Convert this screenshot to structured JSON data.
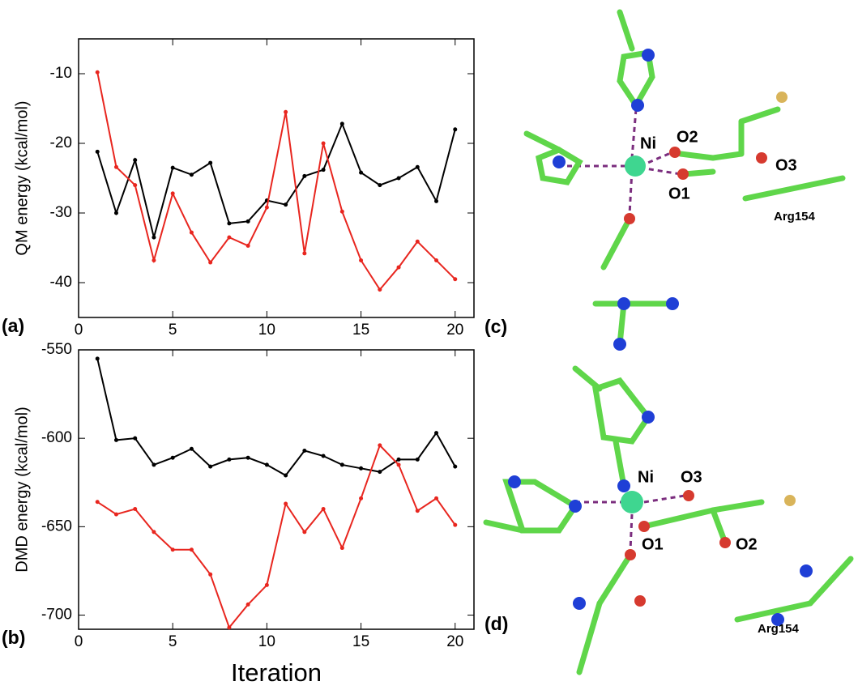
{
  "chart_data": [
    {
      "type": "line",
      "panel": "(a)",
      "y_label": "QM energy (kcal/mol)",
      "x": [
        1,
        2,
        3,
        4,
        5,
        6,
        7,
        8,
        9,
        10,
        11,
        12,
        13,
        14,
        15,
        16,
        17,
        18,
        19,
        20
      ],
      "series": [
        {
          "color": "#000000",
          "values": [
            -21.2,
            -30,
            -22.4,
            -33.5,
            -23.5,
            -24.5,
            -22.8,
            -31.5,
            -31.2,
            -28.2,
            -28.8,
            -24.7,
            -23.8,
            -17.2,
            -24.2,
            -26,
            -25,
            -23.4,
            -28.3,
            -18
          ]
        },
        {
          "color": "#e8261f",
          "values": [
            -9.8,
            -23.4,
            -26,
            -36.8,
            -27.2,
            -32.8,
            -37.1,
            -33.5,
            -34.7,
            -29.2,
            -15.5,
            -35.8,
            -20,
            -29.8,
            -36.8,
            -41,
            -37.8,
            -34.1,
            -36.8,
            -39.5
          ]
        }
      ],
      "xlim": [
        0,
        21
      ],
      "xticks": [
        0,
        5,
        10,
        15,
        20
      ],
      "ylim": [
        -45,
        -5
      ],
      "yticks": [
        -40,
        -30,
        -20,
        -10
      ]
    },
    {
      "type": "line",
      "panel": "(b)",
      "y_label": "DMD energy (kcal/mol)",
      "x_label": "Iteration",
      "x": [
        1,
        2,
        3,
        4,
        5,
        6,
        7,
        8,
        9,
        10,
        11,
        12,
        13,
        14,
        15,
        16,
        17,
        18,
        19,
        20
      ],
      "series": [
        {
          "color": "#000000",
          "values": [
            -555,
            -601,
            -600,
            -615,
            -611,
            -606,
            -616,
            -612,
            -611,
            -615,
            -621,
            -607,
            -610,
            -615,
            -617,
            -619,
            -612,
            -612,
            -597,
            -616
          ]
        },
        {
          "color": "#e8261f",
          "values": [
            -636,
            -643,
            -640,
            -653,
            -663,
            -663,
            -677,
            -707,
            -694,
            -683,
            -637,
            -653,
            -640,
            -662,
            -634,
            -604,
            -615,
            -641,
            -634,
            -649
          ]
        }
      ],
      "xlim": [
        0,
        21
      ],
      "xticks": [
        0,
        5,
        10,
        15,
        20
      ],
      "ylim": [
        -708,
        -550
      ],
      "yticks": [
        -700,
        -650,
        -600,
        -550
      ]
    }
  ],
  "structures": [
    {
      "panel": "(c)",
      "labels": [
        "Ni",
        "O2",
        "O3",
        "O1",
        "Arg154"
      ]
    },
    {
      "panel": "(d)",
      "labels": [
        "Ni",
        "O3",
        "O1",
        "O2",
        "Arg154"
      ]
    }
  ]
}
